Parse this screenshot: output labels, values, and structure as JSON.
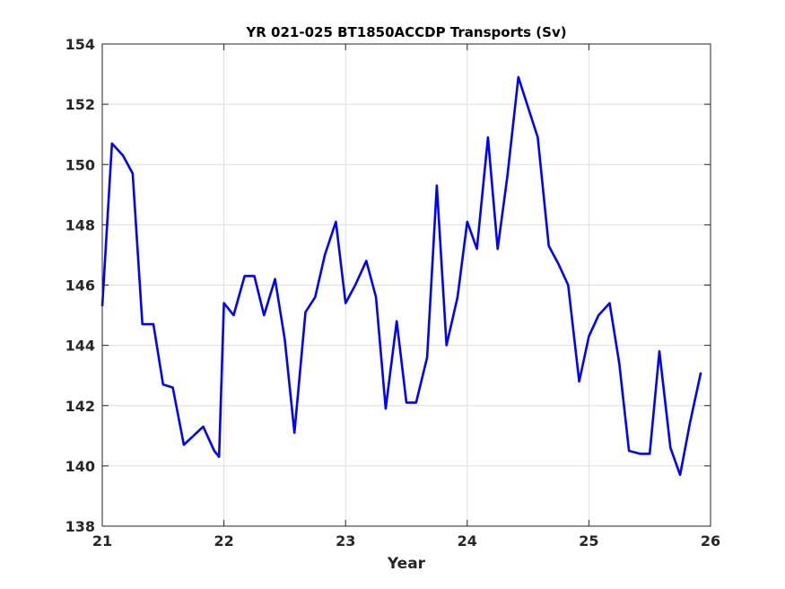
{
  "chart_data": {
    "type": "line",
    "title": "YR 021-025 BT1850ACCDP Transports (Sv)",
    "xlabel": "Year",
    "ylabel": "",
    "xlim": [
      21,
      26
    ],
    "ylim": [
      138,
      154
    ],
    "xticks": [
      "21",
      "22",
      "23",
      "24",
      "25",
      "26"
    ],
    "yticks": [
      "138",
      "140",
      "142",
      "144",
      "146",
      "148",
      "150",
      "152",
      "154"
    ],
    "grid": true,
    "series": [
      {
        "color": "#0000ff",
        "x": [
          21.0,
          21.08,
          21.17,
          21.25,
          21.33,
          21.42,
          21.5,
          21.58,
          21.67,
          21.75,
          21.83,
          21.92,
          21.96,
          22.0,
          22.08,
          22.17,
          22.25,
          22.33,
          22.42,
          22.5,
          22.58,
          22.67,
          22.75,
          22.83,
          22.92,
          23.0,
          23.08,
          23.17,
          23.25,
          23.33,
          23.42,
          23.5,
          23.58,
          23.67,
          23.75,
          23.83,
          23.92,
          24.0,
          24.08,
          24.17,
          24.25,
          24.33,
          24.42,
          24.5,
          24.58,
          24.67,
          24.75,
          24.83,
          24.92,
          25.0,
          25.08,
          25.17,
          25.25,
          25.33,
          25.42,
          25.5,
          25.58,
          25.67,
          25.75,
          25.83,
          25.92
        ],
        "values": [
          145.3,
          150.7,
          150.3,
          149.7,
          144.7,
          144.7,
          142.7,
          142.6,
          140.7,
          141.0,
          141.3,
          140.5,
          140.3,
          145.4,
          145.0,
          146.3,
          146.3,
          145.0,
          146.2,
          144.2,
          141.1,
          145.1,
          145.6,
          147.0,
          148.1,
          145.4,
          146.0,
          146.8,
          145.6,
          141.9,
          144.8,
          142.1,
          142.1,
          143.6,
          149.3,
          144.0,
          145.6,
          148.1,
          147.2,
          150.9,
          147.2,
          149.6,
          152.9,
          151.9,
          150.9,
          147.3,
          146.7,
          146.0,
          142.8,
          144.3,
          145.0,
          145.4,
          143.4,
          140.5,
          140.4,
          140.4,
          143.8,
          140.6,
          139.7,
          141.4,
          143.1
        ]
      }
    ]
  }
}
